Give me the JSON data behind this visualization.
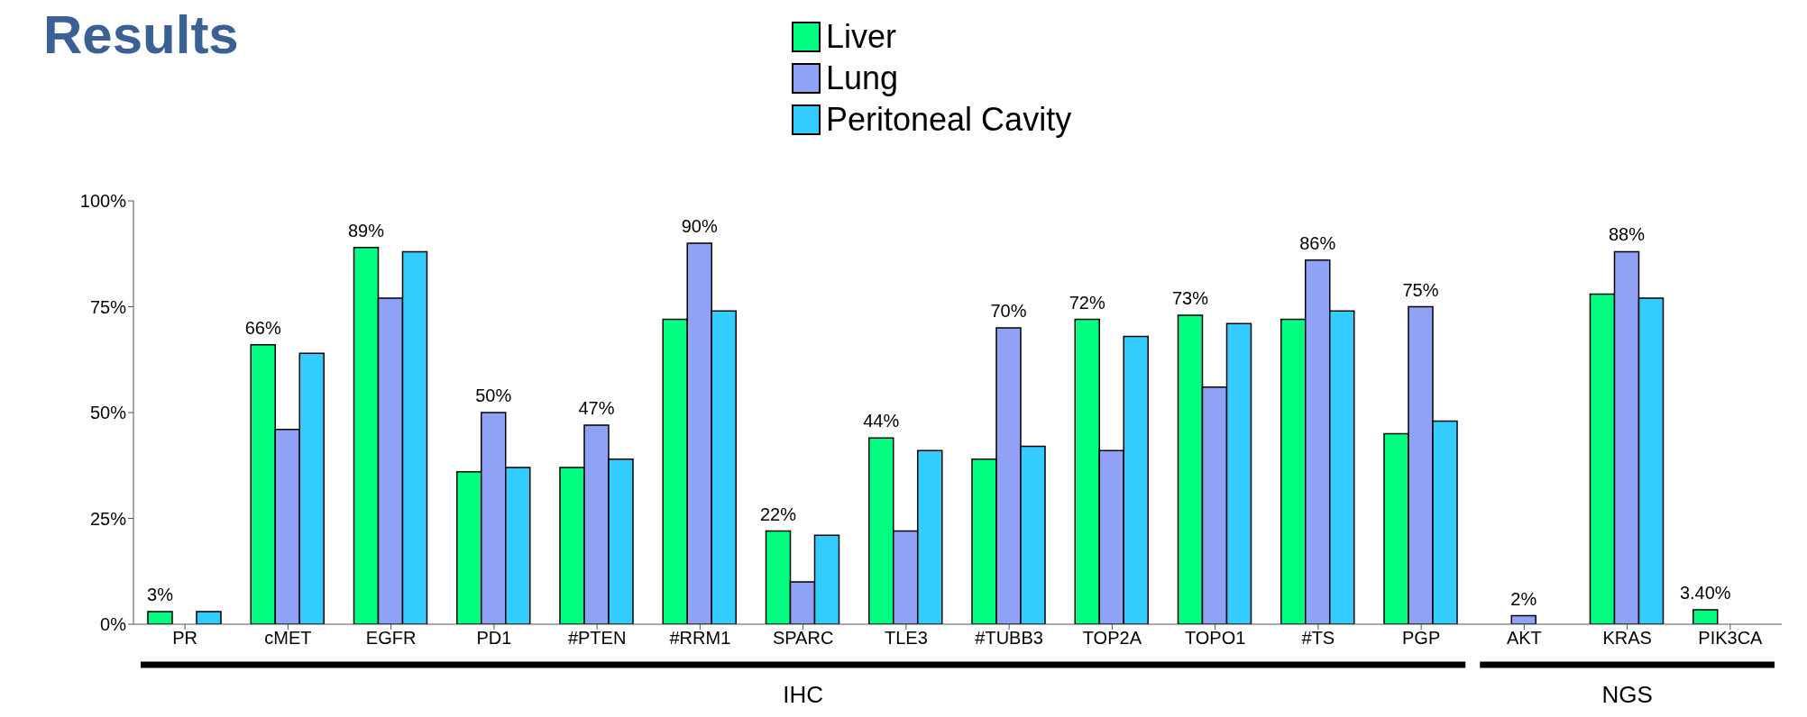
{
  "chart_data": {
    "type": "bar",
    "title": "Results",
    "categories": [
      "PR",
      "cMET",
      "EGFR",
      "PD1",
      "#PTEN",
      "#RRM1",
      "SPARC",
      "TLE3",
      "#TUBB3",
      "TOP2A",
      "TOPO1",
      "#TS",
      "PGP",
      "AKT",
      "KRAS",
      "PIK3CA"
    ],
    "series": [
      {
        "name": "Liver",
        "color": "#00ff80",
        "values": [
          3,
          66,
          89,
          36,
          37,
          72,
          22,
          44,
          39,
          72,
          73,
          72,
          45,
          0,
          78,
          3.4
        ],
        "value_labels": [
          "3%",
          "66%",
          "89%",
          null,
          null,
          null,
          "22%",
          "44%",
          null,
          "72%",
          "73%",
          null,
          null,
          null,
          null,
          "3.40%"
        ]
      },
      {
        "name": "Lung",
        "color": "#8fa2f5",
        "values": [
          0,
          46,
          77,
          50,
          47,
          90,
          10,
          22,
          70,
          41,
          56,
          86,
          75,
          2,
          88,
          0
        ],
        "value_labels": [
          null,
          null,
          null,
          "50%",
          "47%",
          "90%",
          null,
          null,
          "70%",
          null,
          null,
          "86%",
          "75%",
          "2%",
          "88%",
          null
        ]
      },
      {
        "name": "Peritoneal Cavity",
        "color": "#33ccff",
        "values": [
          3,
          64,
          88,
          37,
          39,
          74,
          21,
          41,
          42,
          68,
          71,
          74,
          48,
          0,
          77,
          0
        ]
      }
    ],
    "ylim": [
      0,
      100
    ],
    "yticks": [
      {
        "value": 0,
        "label": "0%"
      },
      {
        "value": 25,
        "label": "25%"
      },
      {
        "value": 50,
        "label": "50%"
      },
      {
        "value": 75,
        "label": "75%"
      },
      {
        "value": 100,
        "label": "100%"
      }
    ],
    "legend": "top",
    "grid": false,
    "annotations": [
      "IHC",
      "NGS"
    ]
  }
}
